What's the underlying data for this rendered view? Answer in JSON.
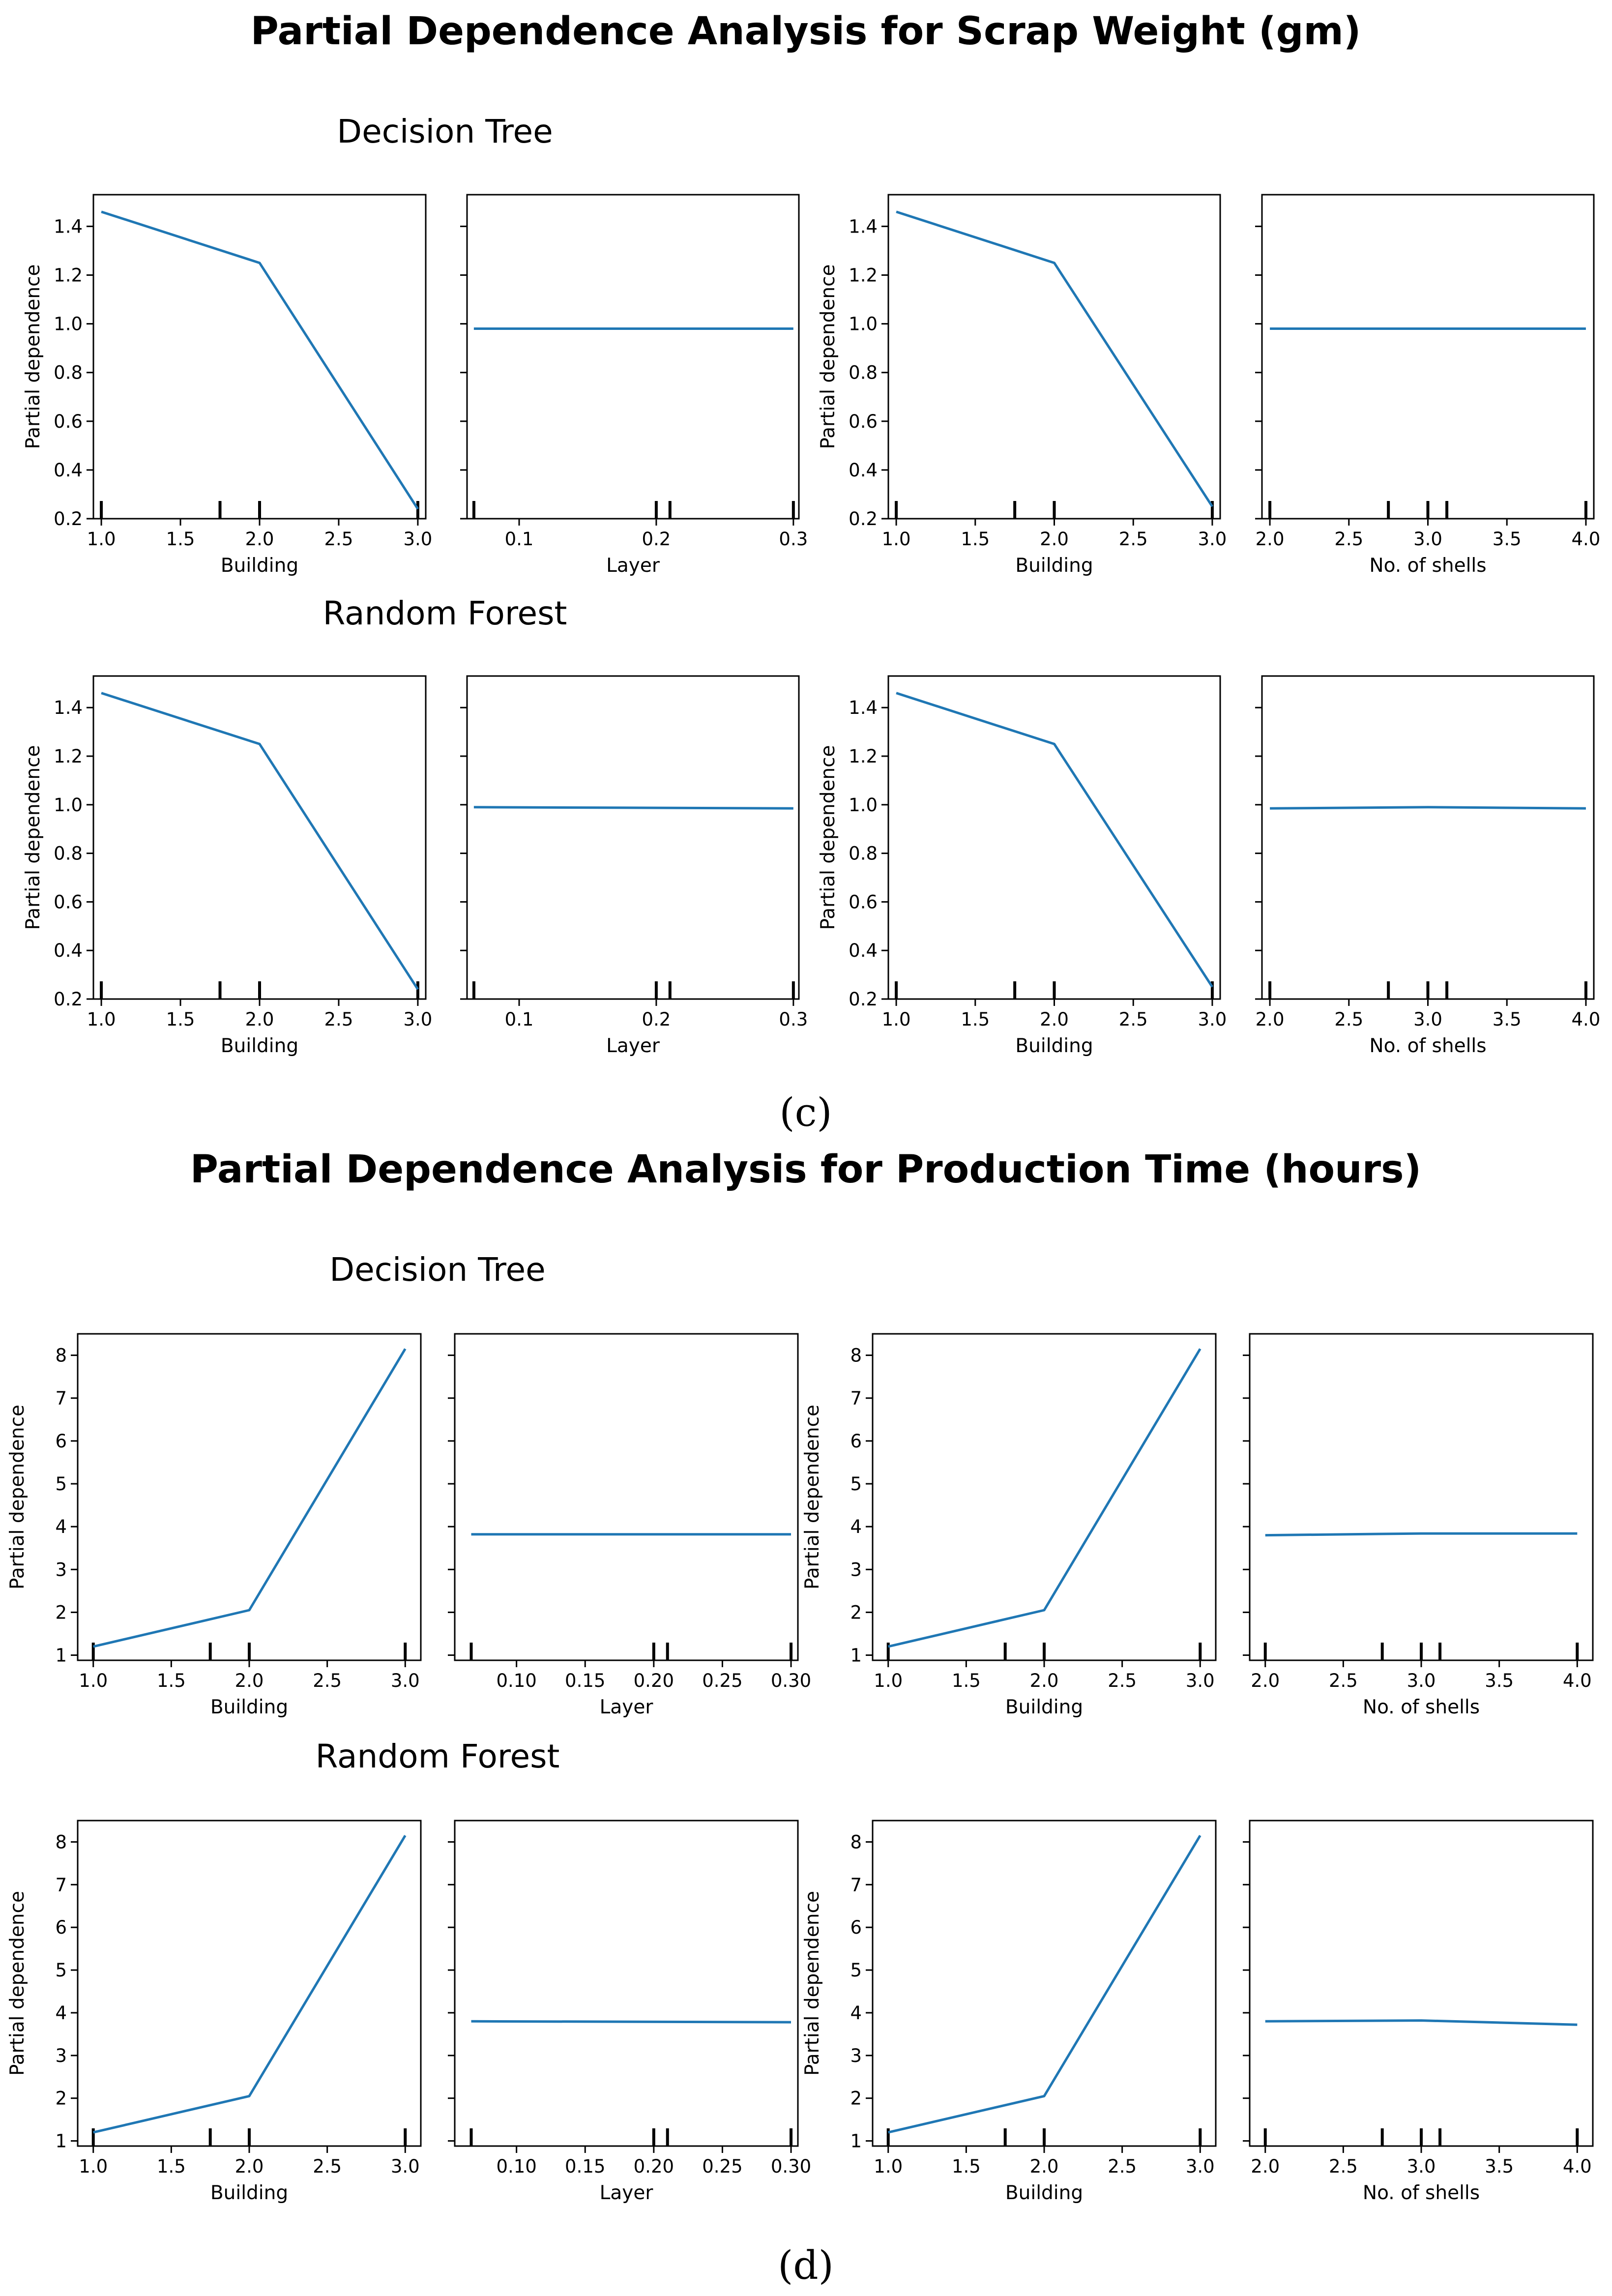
{
  "sections": [
    {
      "title": "Partial Dependence Analysis for Scrap Weight (gm)",
      "caption": "(c)",
      "models": [
        {
          "title": "Decision Tree",
          "y_ticks": [
            "0.2",
            "0.4",
            "0.6",
            "0.8",
            "1.0",
            "1.2",
            "1.4"
          ],
          "chart_data": [
            {
              "type": "line",
              "xlabel": "Building",
              "ylabel": "Partial dependence",
              "xlim": [
                0.95,
                3.05
              ],
              "ylim": [
                0.2,
                1.53
              ],
              "x_ticks": [
                "1.0",
                "1.5",
                "2.0",
                "2.5",
                "3.0"
              ],
              "x": [
                1.0,
                2.0,
                3.0
              ],
              "y": [
                1.46,
                1.25,
                0.24
              ],
              "rug": [
                1.0,
                1.75,
                2.0,
                3.0
              ]
            },
            {
              "type": "line",
              "xlabel": "Layer",
              "ylabel": "",
              "xlim": [
                0.062,
                0.304
              ],
              "ylim": [
                0.2,
                1.53
              ],
              "x_ticks": [
                "0.1",
                "0.2",
                "0.3"
              ],
              "x": [
                0.067,
                0.3
              ],
              "y": [
                0.98,
                0.98
              ],
              "rug": [
                0.067,
                0.2,
                0.21,
                0.3
              ]
            },
            {
              "type": "line",
              "xlabel": "Building",
              "ylabel": "Partial dependence",
              "xlim": [
                0.95,
                3.05
              ],
              "ylim": [
                0.2,
                1.53
              ],
              "x_ticks": [
                "1.0",
                "1.5",
                "2.0",
                "2.5",
                "3.0"
              ],
              "x": [
                1.0,
                2.0,
                3.0
              ],
              "y": [
                1.46,
                1.25,
                0.25
              ],
              "rug": [
                1.0,
                1.75,
                2.0,
                3.0
              ]
            },
            {
              "type": "line",
              "xlabel": "No. of shells",
              "ylabel": "",
              "xlim": [
                1.95,
                4.05
              ],
              "ylim": [
                0.2,
                1.53
              ],
              "x_ticks": [
                "2.0",
                "2.5",
                "3.0",
                "3.5",
                "4.0"
              ],
              "x": [
                2.0,
                3.0,
                4.0
              ],
              "y": [
                0.98,
                0.98,
                0.98
              ],
              "rug": [
                2.0,
                2.75,
                3.0,
                3.12,
                4.0
              ]
            }
          ]
        },
        {
          "title": "Random Forest",
          "y_ticks": [
            "0.2",
            "0.4",
            "0.6",
            "0.8",
            "1.0",
            "1.2",
            "1.4"
          ],
          "chart_data": [
            {
              "type": "line",
              "xlabel": "Building",
              "ylabel": "Partial dependence",
              "xlim": [
                0.95,
                3.05
              ],
              "ylim": [
                0.2,
                1.53
              ],
              "x_ticks": [
                "1.0",
                "1.5",
                "2.0",
                "2.5",
                "3.0"
              ],
              "x": [
                1.0,
                2.0,
                3.0
              ],
              "y": [
                1.46,
                1.25,
                0.24
              ],
              "rug": [
                1.0,
                1.75,
                2.0,
                3.0
              ]
            },
            {
              "type": "line",
              "xlabel": "Layer",
              "ylabel": "",
              "xlim": [
                0.062,
                0.304
              ],
              "ylim": [
                0.2,
                1.53
              ],
              "x_ticks": [
                "0.1",
                "0.2",
                "0.3"
              ],
              "x": [
                0.067,
                0.3
              ],
              "y": [
                0.99,
                0.985
              ],
              "rug": [
                0.067,
                0.2,
                0.21,
                0.3
              ]
            },
            {
              "type": "line",
              "xlabel": "Building",
              "ylabel": "Partial dependence",
              "xlim": [
                0.95,
                3.05
              ],
              "ylim": [
                0.2,
                1.53
              ],
              "x_ticks": [
                "1.0",
                "1.5",
                "2.0",
                "2.5",
                "3.0"
              ],
              "x": [
                1.0,
                2.0,
                3.0
              ],
              "y": [
                1.46,
                1.25,
                0.25
              ],
              "rug": [
                1.0,
                1.75,
                2.0,
                3.0
              ]
            },
            {
              "type": "line",
              "xlabel": "No. of shells",
              "ylabel": "",
              "xlim": [
                1.95,
                4.05
              ],
              "ylim": [
                0.2,
                1.53
              ],
              "x_ticks": [
                "2.0",
                "2.5",
                "3.0",
                "3.5",
                "4.0"
              ],
              "x": [
                2.0,
                3.0,
                4.0
              ],
              "y": [
                0.985,
                0.99,
                0.985
              ],
              "rug": [
                2.0,
                2.75,
                3.0,
                3.12,
                4.0
              ]
            }
          ]
        }
      ]
    },
    {
      "title": "Partial Dependence Analysis for Production Time (hours)",
      "caption": "(d)",
      "models": [
        {
          "title": "Decision Tree",
          "y_ticks": [
            "1",
            "2",
            "3",
            "4",
            "5",
            "6",
            "7",
            "8"
          ],
          "chart_data": [
            {
              "type": "line",
              "xlabel": "Building",
              "ylabel": "Partial dependence",
              "xlim": [
                0.9,
                3.1
              ],
              "ylim": [
                0.88,
                8.5
              ],
              "x_ticks": [
                "1.0",
                "1.5",
                "2.0",
                "2.5",
                "3.0"
              ],
              "x": [
                1.0,
                2.0,
                3.0
              ],
              "y": [
                1.2,
                2.05,
                8.15
              ],
              "rug": [
                1.0,
                1.75,
                2.0,
                3.0
              ]
            },
            {
              "type": "line",
              "xlabel": "Layer",
              "ylabel": "",
              "xlim": [
                0.055,
                0.305
              ],
              "ylim": [
                0.88,
                8.5
              ],
              "x_ticks": [
                "0.10",
                "0.15",
                "0.20",
                "0.25",
                "0.30"
              ],
              "x": [
                0.067,
                0.3
              ],
              "y": [
                3.82,
                3.82
              ],
              "rug": [
                0.067,
                0.2,
                0.21,
                0.3
              ]
            },
            {
              "type": "line",
              "xlabel": "Building",
              "ylabel": "Partial dependence",
              "xlim": [
                0.9,
                3.1
              ],
              "ylim": [
                0.88,
                8.5
              ],
              "x_ticks": [
                "1.0",
                "1.5",
                "2.0",
                "2.5",
                "3.0"
              ],
              "x": [
                1.0,
                2.0,
                3.0
              ],
              "y": [
                1.2,
                2.05,
                8.15
              ],
              "rug": [
                1.0,
                1.75,
                2.0,
                3.0
              ]
            },
            {
              "type": "line",
              "xlabel": "No. of shells",
              "ylabel": "",
              "xlim": [
                1.9,
                4.1
              ],
              "ylim": [
                0.88,
                8.5
              ],
              "x_ticks": [
                "2.0",
                "2.5",
                "3.0",
                "3.5",
                "4.0"
              ],
              "x": [
                2.0,
                3.0,
                4.0
              ],
              "y": [
                3.8,
                3.84,
                3.84
              ],
              "rug": [
                2.0,
                2.75,
                3.0,
                3.12,
                4.0
              ]
            }
          ]
        },
        {
          "title": "Random Forest",
          "y_ticks": [
            "1",
            "2",
            "3",
            "4",
            "5",
            "6",
            "7",
            "8"
          ],
          "chart_data": [
            {
              "type": "line",
              "xlabel": "Building",
              "ylabel": "Partial dependence",
              "xlim": [
                0.9,
                3.1
              ],
              "ylim": [
                0.88,
                8.5
              ],
              "x_ticks": [
                "1.0",
                "1.5",
                "2.0",
                "2.5",
                "3.0"
              ],
              "x": [
                1.0,
                2.0,
                3.0
              ],
              "y": [
                1.2,
                2.05,
                8.15
              ],
              "rug": [
                1.0,
                1.75,
                2.0,
                3.0
              ]
            },
            {
              "type": "line",
              "xlabel": "Layer",
              "ylabel": "",
              "xlim": [
                0.055,
                0.305
              ],
              "ylim": [
                0.88,
                8.5
              ],
              "x_ticks": [
                "0.10",
                "0.15",
                "0.20",
                "0.25",
                "0.30"
              ],
              "x": [
                0.067,
                0.3
              ],
              "y": [
                3.8,
                3.78
              ],
              "rug": [
                0.067,
                0.2,
                0.21,
                0.3
              ]
            },
            {
              "type": "line",
              "xlabel": "Building",
              "ylabel": "Partial dependence",
              "xlim": [
                0.9,
                3.1
              ],
              "ylim": [
                0.88,
                8.5
              ],
              "x_ticks": [
                "1.0",
                "1.5",
                "2.0",
                "2.5",
                "3.0"
              ],
              "x": [
                1.0,
                2.0,
                3.0
              ],
              "y": [
                1.2,
                2.05,
                8.15
              ],
              "rug": [
                1.0,
                1.75,
                2.0,
                3.0
              ]
            },
            {
              "type": "line",
              "xlabel": "No. of shells",
              "ylabel": "",
              "xlim": [
                1.9,
                4.1
              ],
              "ylim": [
                0.88,
                8.5
              ],
              "x_ticks": [
                "2.0",
                "2.5",
                "3.0",
                "3.5",
                "4.0"
              ],
              "x": [
                2.0,
                3.0,
                4.0
              ],
              "y": [
                3.8,
                3.82,
                3.72
              ],
              "rug": [
                2.0,
                2.75,
                3.0,
                3.12,
                4.0
              ]
            }
          ]
        }
      ]
    }
  ],
  "colors": {
    "series": "#1f77b4",
    "axes": "#000000",
    "background": "#ffffff"
  }
}
